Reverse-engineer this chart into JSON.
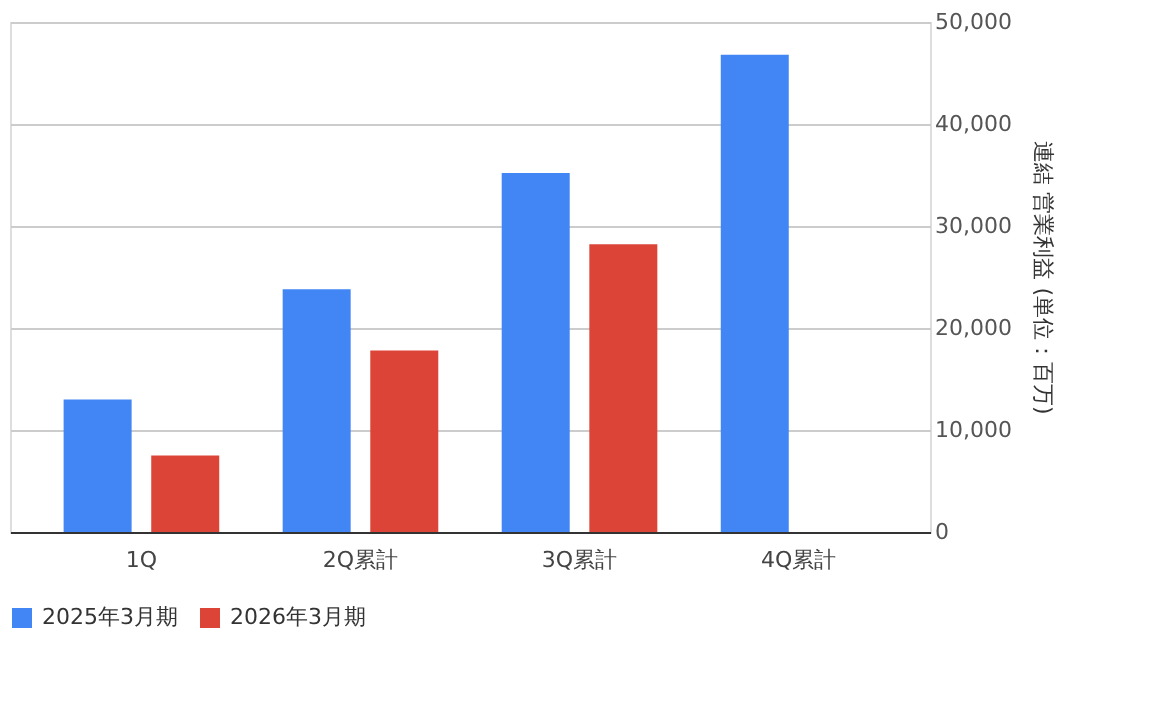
{
  "chart_data": {
    "type": "bar",
    "categories": [
      "1Q",
      "2Q累計",
      "3Q累計",
      "4Q累計"
    ],
    "ylabel": "連結 営業利益 (単位：百万)",
    "series": [
      {
        "name": "2025年3月期",
        "color": "#4285f4",
        "values": [
          13000,
          23800,
          35200,
          46800
        ]
      },
      {
        "name": "2026年3月期",
        "color": "#db4437",
        "values": [
          7500,
          17800,
          28200,
          null
        ]
      }
    ],
    "ylim": [
      0,
      50000
    ],
    "yticks": [
      {
        "value": 0,
        "label": "0"
      },
      {
        "value": 10000,
        "label": "10,000"
      },
      {
        "value": 20000,
        "label": "20,000"
      },
      {
        "value": 30000,
        "label": "30,000"
      },
      {
        "value": 40000,
        "label": "40,000"
      },
      {
        "value": 50000,
        "label": "50,000"
      }
    ],
    "grid": "y",
    "legend": "bottom"
  }
}
